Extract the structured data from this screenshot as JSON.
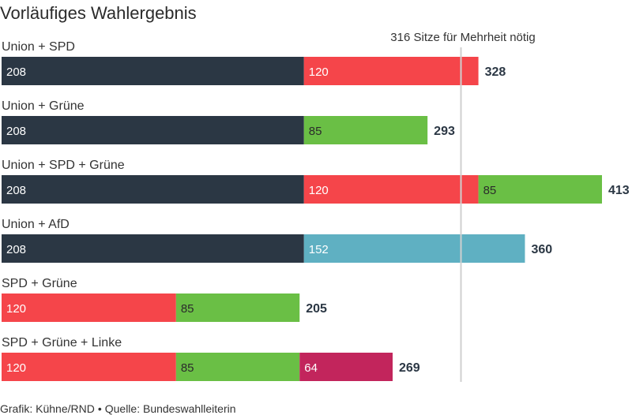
{
  "title": "Vorläufiges Wahlergebnis",
  "footer": {
    "credit": "Grafik: Kühne/RND",
    "source": "Quelle: Bundeswahlleiterin"
  },
  "colors": {
    "Union": "#2b3744",
    "SPD": "#f5454a",
    "Grüne": "#6abf45",
    "AfD": "#5fb0c2",
    "Linke": "#c2255c",
    "majority_line": "#cfcfcf"
  },
  "chart_data": {
    "type": "bar",
    "orientation": "horizontal",
    "stacked": true,
    "xlim": [
      0,
      413
    ],
    "grid": false,
    "reference_line": {
      "value": 316,
      "label": "316 Sitze für Mehrheit nötig"
    },
    "categories": [
      "Union + SPD",
      "Union + Grüne",
      "Union + SPD + Grüne",
      "Union + AfD",
      "SPD + Grüne",
      "SPD + Grüne + Linke"
    ],
    "rows": [
      {
        "label": "Union + SPD",
        "total": 328,
        "segments": [
          {
            "party": "Union",
            "value": 208
          },
          {
            "party": "SPD",
            "value": 120
          }
        ]
      },
      {
        "label": "Union + Grüne",
        "total": 293,
        "segments": [
          {
            "party": "Union",
            "value": 208
          },
          {
            "party": "Grüne",
            "value": 85
          }
        ]
      },
      {
        "label": "Union + SPD + Grüne",
        "total": 413,
        "segments": [
          {
            "party": "Union",
            "value": 208
          },
          {
            "party": "SPD",
            "value": 120
          },
          {
            "party": "Grüne",
            "value": 85
          }
        ]
      },
      {
        "label": "Union + AfD",
        "total": 360,
        "segments": [
          {
            "party": "Union",
            "value": 208
          },
          {
            "party": "AfD",
            "value": 152
          }
        ]
      },
      {
        "label": "SPD + Grüne",
        "total": 205,
        "segments": [
          {
            "party": "SPD",
            "value": 120
          },
          {
            "party": "Grüne",
            "value": 85
          }
        ]
      },
      {
        "label": "SPD + Grüne + Linke",
        "total": 269,
        "segments": [
          {
            "party": "SPD",
            "value": 120
          },
          {
            "party": "Grüne",
            "value": 85
          },
          {
            "party": "Linke",
            "value": 64
          }
        ]
      }
    ]
  }
}
